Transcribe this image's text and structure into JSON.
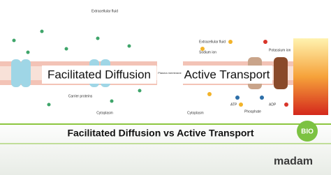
{
  "left_panel": {
    "extracellular": "Extracellular fluid",
    "carrier": "Carrier proteins",
    "cytoplasm": "Cytoplasm"
  },
  "right_panel": {
    "extracellular": "Extracellular fluid",
    "sodium": "Sodium ion",
    "potassium": "Potassium ion",
    "atp": "ATP",
    "phosphate": "Phosphate",
    "adp": "ADP",
    "cytoplasm": "Cytoplasm",
    "membrane": "Plasma membrane"
  },
  "labels": {
    "left": "Facilitated Diffusion",
    "right": "Active Transport"
  },
  "footer": {
    "title": "Facilitated Diffusion vs Active Transport",
    "logo_badge": "BIO",
    "logo_text": "madam"
  }
}
